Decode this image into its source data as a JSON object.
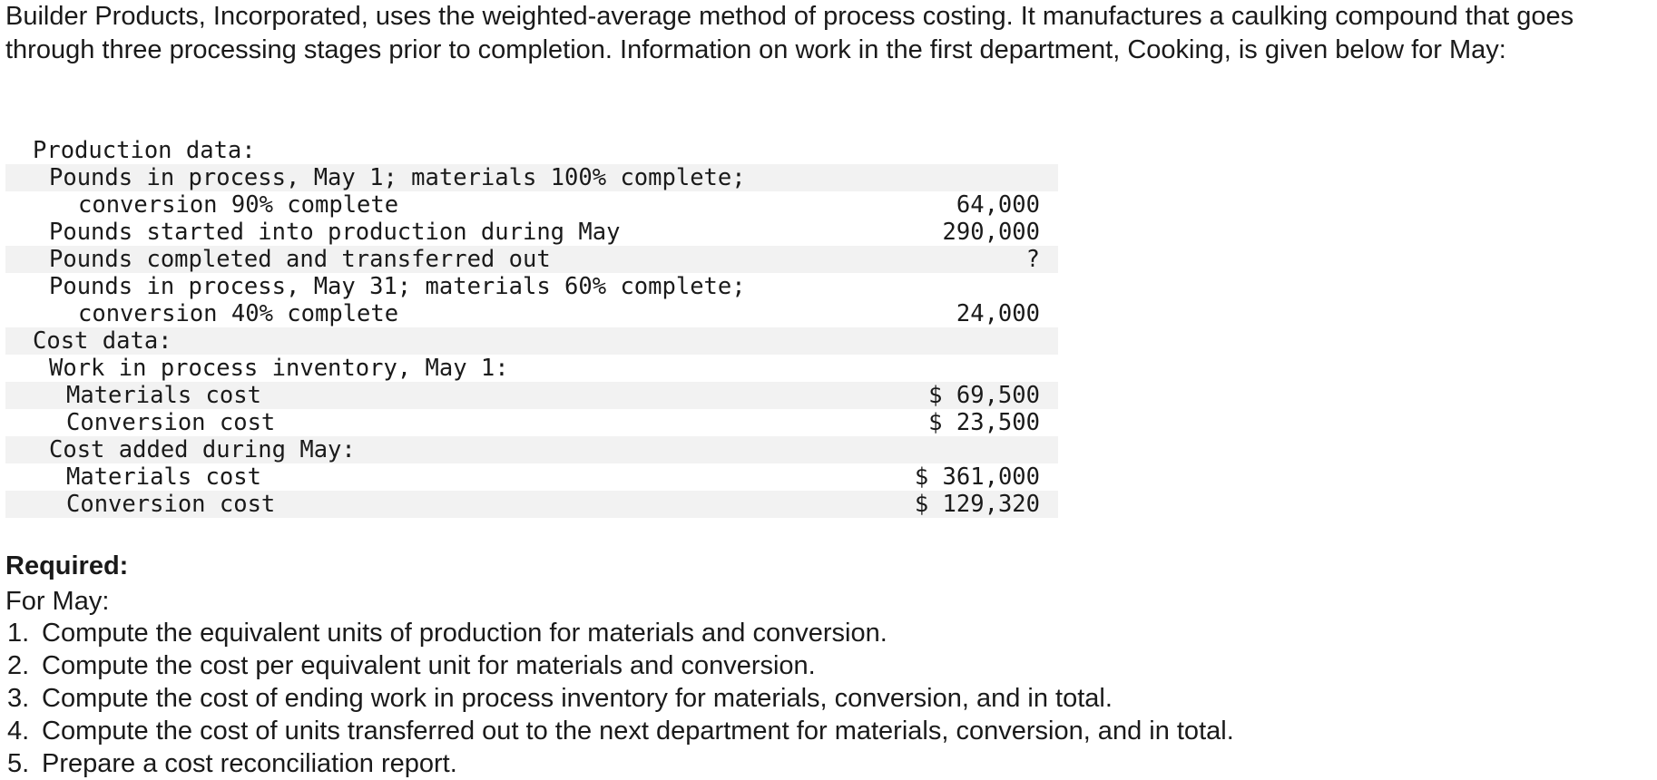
{
  "intro": "Builder Products, Incorporated, uses the weighted-average method of process costing. It manufactures a caulking compound that goes through three processing stages prior to completion. Information on work in the first department, Cooking, is given below for May:",
  "rows": [
    {
      "label": "Production data:",
      "value": "",
      "indent": 0,
      "shaded": false
    },
    {
      "label": "Pounds in process, May 1; materials 100% complete;",
      "value": "",
      "indent": 1,
      "shaded": true
    },
    {
      "label": "conversion 90% complete",
      "value": "64,000",
      "indent": 3,
      "shaded": false
    },
    {
      "label": "Pounds started into production during May",
      "value": "290,000",
      "indent": 1,
      "shaded": false
    },
    {
      "label": "Pounds completed and transferred out",
      "value": "?",
      "indent": 1,
      "shaded": true
    },
    {
      "label": "Pounds in process, May 31; materials 60% complete;",
      "value": "",
      "indent": 1,
      "shaded": false
    },
    {
      "label": "conversion 40% complete",
      "value": "24,000",
      "indent": 3,
      "shaded": false
    },
    {
      "label": "Cost data:",
      "value": "",
      "indent": 0,
      "shaded": true
    },
    {
      "label": "Work in process inventory, May 1:",
      "value": "",
      "indent": 1,
      "shaded": false
    },
    {
      "label": "Materials cost",
      "value": "$ 69,500",
      "indent": 2,
      "shaded": true
    },
    {
      "label": "Conversion cost",
      "value": "$ 23,500",
      "indent": 2,
      "shaded": false
    },
    {
      "label": "Cost added during May:",
      "value": "",
      "indent": 1,
      "shaded": true
    },
    {
      "label": "Materials cost",
      "value": "$ 361,000",
      "indent": 2,
      "shaded": false
    },
    {
      "label": "Conversion cost",
      "value": "$ 129,320",
      "indent": 2,
      "shaded": true
    }
  ],
  "required": {
    "heading": "Required:",
    "subheading": "For May:",
    "items": [
      {
        "num": "1.",
        "text": "Compute the equivalent units of production for materials and conversion."
      },
      {
        "num": "2.",
        "text": "Compute the cost per equivalent unit for materials and conversion."
      },
      {
        "num": "3.",
        "text": "Compute the cost of ending work in process inventory for materials, conversion, and in total."
      },
      {
        "num": "4.",
        "text": "Compute the cost of units transferred out to the next department for materials, conversion, and in total."
      },
      {
        "num": "5.",
        "text": "Prepare a cost reconciliation report."
      }
    ]
  }
}
